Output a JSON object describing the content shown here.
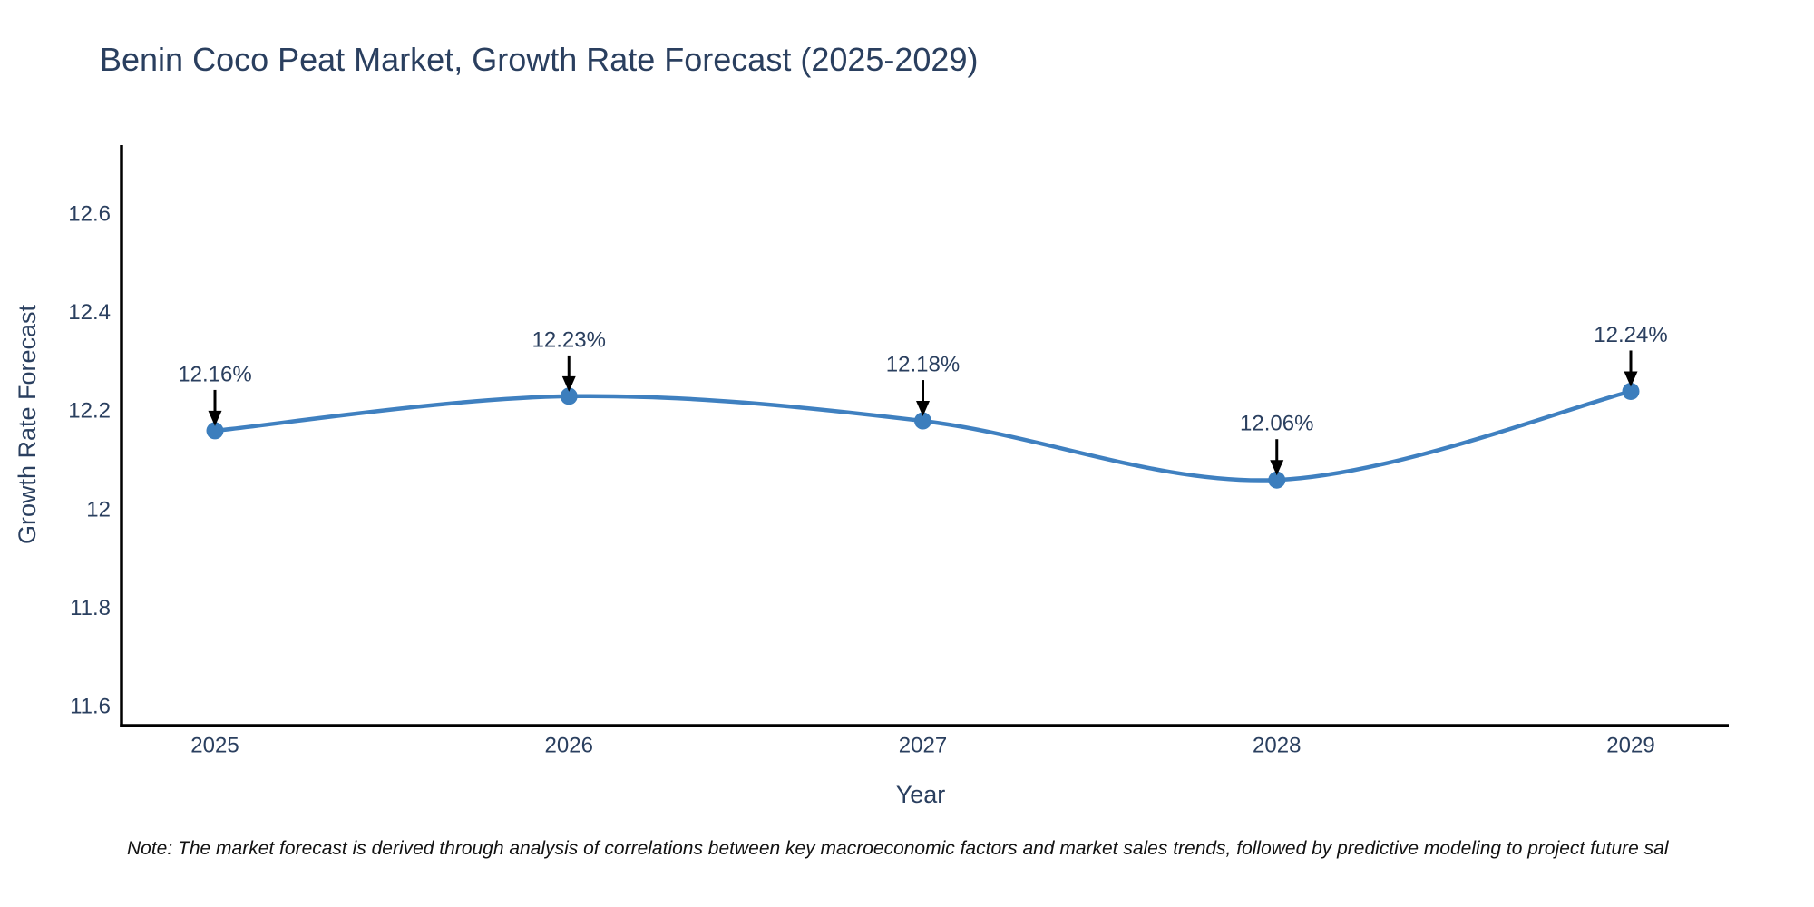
{
  "title": "Benin Coco Peat Market, Growth Rate Forecast (2025-2029)",
  "note": "Note: The market forecast is derived through analysis of correlations between key macroeconomic factors and market sales trends, followed by predictive modeling to project future sal",
  "colors": {
    "series_line": "#3f80c0",
    "marker_fill": "#3c7ebd",
    "axis_line": "#000000",
    "text": "#2a3f5f",
    "annotation_arrow": "#000000",
    "background": "#ffffff"
  },
  "chart_data": {
    "type": "line",
    "title": "Benin Coco Peat Market, Growth Rate Forecast (2025-2029)",
    "xlabel": "Year",
    "ylabel": "Growth Rate Forecast",
    "x": [
      2025,
      2026,
      2027,
      2028,
      2029
    ],
    "y": [
      12.16,
      12.23,
      12.18,
      12.06,
      12.24
    ],
    "point_labels": [
      "12.16%",
      "12.23%",
      "12.18%",
      "12.06%",
      "12.24%"
    ],
    "x_tick_labels": [
      "2025",
      "2026",
      "2027",
      "2028",
      "2029"
    ],
    "y_ticks": [
      11.6,
      11.8,
      12.0,
      12.2,
      12.4,
      12.6
    ],
    "y_tick_labels": [
      "11.6",
      "11.8",
      "12",
      "12.2",
      "12.4",
      "12.6"
    ],
    "ylim": [
      11.56,
      12.74
    ],
    "line_shape": "spline",
    "markers": true,
    "grid": false,
    "legend": "none",
    "annotations_have_arrows": true
  }
}
